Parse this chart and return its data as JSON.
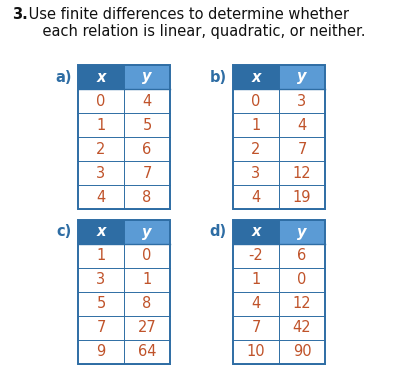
{
  "title_bold": "3.",
  "title_text": " Use finite differences to determine whether\n    each relation is linear, quadratic, or neither.",
  "header_color_dark": "#2E6DA4",
  "header_color_light": "#5B9BD5",
  "border_color": "#2E6DA4",
  "text_color_header": "#FFFFFF",
  "text_color_data": "#C0532A",
  "label_color": "#2E6DA4",
  "tables": [
    {
      "label": "a)",
      "x_vals": [
        "0",
        "1",
        "2",
        "3",
        "4"
      ],
      "y_vals": [
        "4",
        "5",
        "6",
        "7",
        "8"
      ]
    },
    {
      "label": "b)",
      "x_vals": [
        "0",
        "1",
        "2",
        "3",
        "4"
      ],
      "y_vals": [
        "3",
        "4",
        "7",
        "12",
        "19"
      ]
    },
    {
      "label": "c)",
      "x_vals": [
        "1",
        "3",
        "5",
        "7",
        "9"
      ],
      "y_vals": [
        "0",
        "1",
        "8",
        "27",
        "64"
      ]
    },
    {
      "label": "d)",
      "x_vals": [
        "-2",
        "1",
        "4",
        "7",
        "10"
      ],
      "y_vals": [
        "6",
        "0",
        "12",
        "42",
        "90"
      ]
    }
  ],
  "figsize": [
    4.14,
    3.85
  ],
  "dpi": 100
}
